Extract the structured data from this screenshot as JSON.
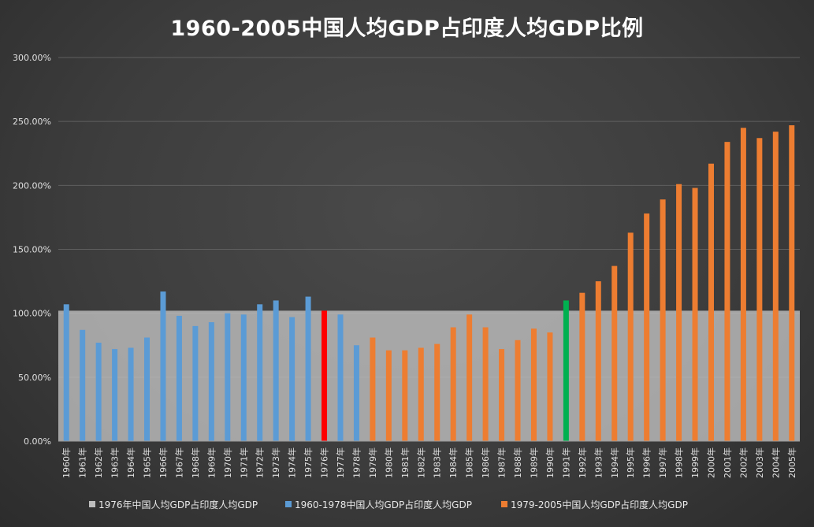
{
  "chart_data": {
    "type": "bar",
    "title": "1960-2005中国人均GDP占印度人均GDP比例",
    "ylim": [
      0,
      3.0
    ],
    "y_ticks": [
      "0.00%",
      "50.00%",
      "100.00%",
      "150.00%",
      "200.00%",
      "250.00%",
      "300.00%"
    ],
    "y_tick_values": [
      0,
      0.5,
      1.0,
      1.5,
      2.0,
      2.5,
      3.0
    ],
    "grid": true,
    "legend_position": "bottom",
    "categories": [
      "1960年",
      "1961年",
      "1962年",
      "1963年",
      "1964年",
      "1965年",
      "1966年",
      "1967年",
      "1968年",
      "1969年",
      "1970年",
      "1971年",
      "1972年",
      "1973年",
      "1974年",
      "1975年",
      "1976年",
      "1977年",
      "1978年",
      "1979年",
      "1980年",
      "1981年",
      "1982年",
      "1983年",
      "1984年",
      "1985年",
      "1986年",
      "1987年",
      "1988年",
      "1989年",
      "1990年",
      "1991年",
      "1992年",
      "1993年",
      "1994年",
      "1995年",
      "1996年",
      "1997年",
      "1998年",
      "1999年",
      "2000年",
      "2001年",
      "2002年",
      "2003年",
      "2004年",
      "2005年"
    ],
    "series": [
      {
        "name": "1976年中国人均GDP占印度人均GDP",
        "type": "area",
        "color": "#bdbdbd",
        "value": 1.02
      },
      {
        "name": "1960-1978中国人均GDP占印度人均GDP",
        "color": "#5b9bd5",
        "values": [
          1.07,
          0.87,
          0.77,
          0.72,
          0.73,
          0.81,
          1.17,
          0.98,
          0.9,
          0.93,
          1.0,
          0.99,
          1.07,
          1.1,
          0.97,
          1.13,
          1.02,
          0.99,
          0.75,
          null,
          null,
          null,
          null,
          null,
          null,
          null,
          null,
          null,
          null,
          null,
          null,
          null,
          null,
          null,
          null,
          null,
          null,
          null,
          null,
          null,
          null,
          null,
          null,
          null,
          null,
          null
        ]
      },
      {
        "name": "1979-2005中国人均GDP占印度人均GDP",
        "color": "#ed7d31",
        "values": [
          null,
          null,
          null,
          null,
          null,
          null,
          null,
          null,
          null,
          null,
          null,
          null,
          null,
          null,
          null,
          null,
          null,
          null,
          null,
          0.81,
          0.71,
          0.71,
          0.73,
          0.76,
          0.89,
          0.99,
          0.89,
          0.72,
          0.79,
          0.88,
          0.85,
          1.1,
          1.16,
          1.25,
          1.37,
          1.63,
          1.78,
          1.89,
          2.01,
          1.98,
          2.17,
          2.34,
          2.45,
          2.37,
          2.42,
          2.47
        ]
      }
    ],
    "highlight_colors": {
      "1976年": "#ff0000",
      "1991年": "#00b050"
    }
  }
}
